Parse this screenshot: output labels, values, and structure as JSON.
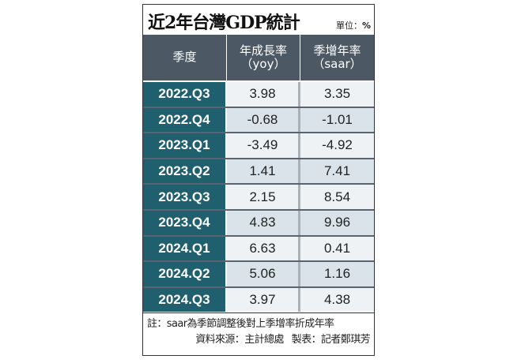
{
  "title": "近2年台灣GDP統計",
  "unit_label": "單位：",
  "unit_value": "%",
  "headers": {
    "col1": "季度",
    "col2_line1": "年成長率",
    "col2_line2": "（yoy）",
    "col3_line1": "季增年率",
    "col3_line2": "（saar）"
  },
  "rows": [
    {
      "quarter": "2022.Q3",
      "yoy": "3.98",
      "saar": "3.35"
    },
    {
      "quarter": "2022.Q4",
      "yoy": "-0.68",
      "saar": "-1.01"
    },
    {
      "quarter": "2023.Q1",
      "yoy": "-3.49",
      "saar": "-4.92"
    },
    {
      "quarter": "2023.Q2",
      "yoy": "1.41",
      "saar": "7.41"
    },
    {
      "quarter": "2023.Q3",
      "yoy": "2.15",
      "saar": "8.54"
    },
    {
      "quarter": "2023.Q4",
      "yoy": "4.83",
      "saar": "9.96"
    },
    {
      "quarter": "2024.Q1",
      "yoy": "6.63",
      "saar": "0.41"
    },
    {
      "quarter": "2024.Q2",
      "yoy": "5.06",
      "saar": "1.16"
    },
    {
      "quarter": "2024.Q3",
      "yoy": "3.97",
      "saar": "4.38"
    }
  ],
  "notes": {
    "line1": "註：saar為季節調整後對上季增率折成年率",
    "source": "資料來源：主計總處",
    "maker": "製表：記者鄭琪芳"
  },
  "colors": {
    "header_bg": "#4c5964",
    "quarter_bg": "#1f5f6e",
    "row_light": "#eef2f5",
    "row_dark": "#d9e3e9"
  }
}
